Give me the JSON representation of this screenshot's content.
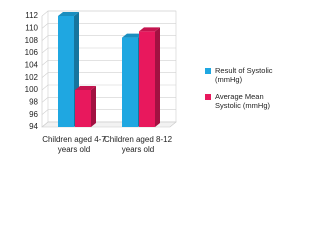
{
  "chart_data": {
    "type": "bar",
    "categories": [
      "Children aged 4-7 years old",
      "Children aged 8-12 years old"
    ],
    "series": [
      {
        "name": "Result of Systolic (mmHg)",
        "color": "#1fa7e1",
        "values": [
          112,
          108.5
        ]
      },
      {
        "name": "Average Mean Systolic (mmHg)",
        "color": "#e8185d",
        "values": [
          100,
          109.5
        ]
      }
    ],
    "ylim": [
      94,
      112
    ],
    "yticks": [
      94,
      96,
      98,
      100,
      102,
      104,
      106,
      108,
      110,
      112
    ],
    "grid": true
  }
}
